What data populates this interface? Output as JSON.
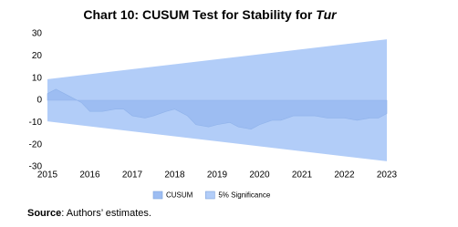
{
  "chart_data": {
    "type": "area",
    "title": "Chart 10: CUSUM Test for Stability for ",
    "title_italic": "Tur",
    "xlim": [
      2015,
      2023
    ],
    "xticks": [
      2015,
      2016,
      2017,
      2018,
      2019,
      2020,
      2021,
      2022,
      2023
    ],
    "ylim": [
      -30,
      30
    ],
    "yticks": [
      -30,
      -20,
      -10,
      0,
      10,
      20,
      30
    ],
    "series": [
      {
        "name": "CUSUM",
        "color": "#9dbdf2",
        "x": [
          2015,
          2015.2,
          2015.4,
          2015.6,
          2015.8,
          2016,
          2016.3,
          2016.6,
          2016.8,
          2017,
          2017.3,
          2017.5,
          2017.8,
          2018,
          2018.3,
          2018.5,
          2018.8,
          2019,
          2019.3,
          2019.5,
          2019.8,
          2020,
          2020.3,
          2020.5,
          2020.8,
          2021,
          2021.3,
          2021.6,
          2022,
          2022.3,
          2022.6,
          2022.8,
          2023
        ],
        "values": [
          3,
          5,
          3,
          1,
          -1,
          -5,
          -5,
          -4,
          -4,
          -7,
          -8,
          -7,
          -5,
          -4,
          -7,
          -11,
          -12,
          -11,
          -10,
          -12,
          -13,
          -11,
          -9,
          -9,
          -7,
          -7,
          -7,
          -8,
          -8,
          -9,
          -8,
          -8,
          -6
        ]
      },
      {
        "name": "5% Significance",
        "color": "#b2cdf8",
        "x": [
          2015,
          2023
        ],
        "upper": [
          9.5,
          27.5
        ],
        "lower": [
          -9.5,
          -27.5
        ]
      }
    ],
    "source_label": "Source",
    "source_text": ": Authors’ estimates."
  }
}
